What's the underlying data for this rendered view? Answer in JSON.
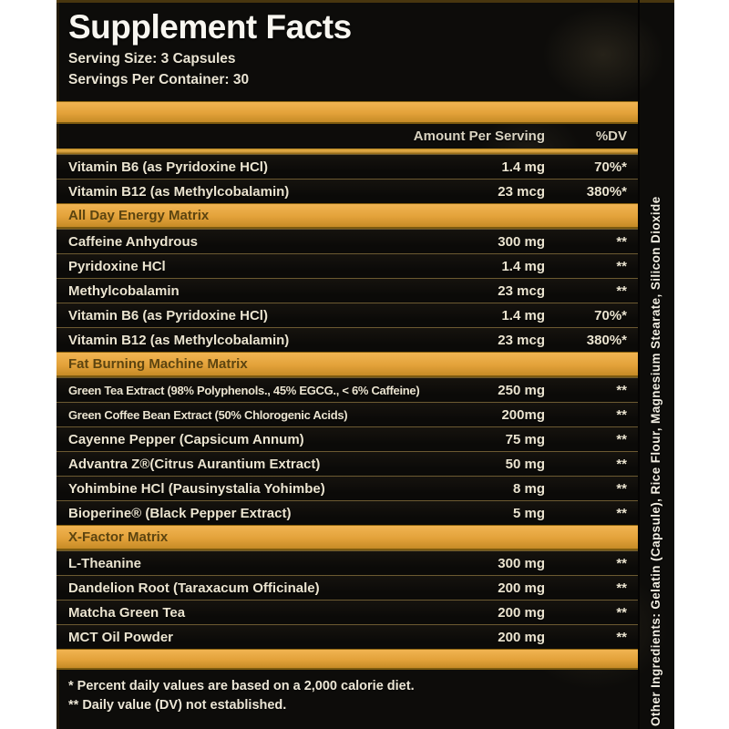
{
  "label": {
    "title": "Supplement Facts",
    "serving_size": "Serving Size: 3 Capsules",
    "servings_per_container": "Servings Per Container: 30",
    "columns": {
      "amount": "Amount Per Serving",
      "dv": "%DV"
    },
    "rows": [
      {
        "name": "Vitamin B6 (as Pyridoxine HCl)",
        "amount": "1.4 mg",
        "dv": "70%*"
      },
      {
        "name": "Vitamin B12 (as Methylcobalamin)",
        "amount": "23 mcg",
        "dv": "380%*"
      },
      {
        "section": "All Day Energy Matrix"
      },
      {
        "name": "Caffeine Anhydrous",
        "amount": "300 mg",
        "dv": "**"
      },
      {
        "name": "Pyridoxine HCl",
        "amount": "1.4 mg",
        "dv": "**"
      },
      {
        "name": "Methylcobalamin",
        "amount": "23 mcg",
        "dv": "**"
      },
      {
        "name": "Vitamin B6 (as Pyridoxine HCl)",
        "amount": "1.4 mg",
        "dv": "70%*"
      },
      {
        "name": "Vitamin B12 (as Methylcobalamin)",
        "amount": "23 mcg",
        "dv": "380%*"
      },
      {
        "section": "Fat Burning Machine Matrix"
      },
      {
        "name": "Green Tea Extract (98% Polyphenols., 45% EGCG., < 6% Caffeine)",
        "amount": "250 mg",
        "dv": "**"
      },
      {
        "name": "Green Coffee Bean Extract (50% Chlorogenic Acids)",
        "amount": "200mg",
        "dv": "**"
      },
      {
        "name": "Cayenne Pepper (Capsicum Annum)",
        "amount": "75 mg",
        "dv": "**"
      },
      {
        "name": "Advantra Z®(Citrus Aurantium Extract)",
        "amount": "50 mg",
        "dv": "**"
      },
      {
        "name": "Yohimbine HCl (Pausinystalia Yohimbe)",
        "amount": "8 mg",
        "dv": "**"
      },
      {
        "name": "Bioperine® (Black Pepper Extract)",
        "amount": "5 mg",
        "dv": "**"
      },
      {
        "section": "X-Factor Matrix"
      },
      {
        "name": "L-Theanine",
        "amount": "300 mg",
        "dv": "**"
      },
      {
        "name": "Dandelion Root (Taraxacum Officinale)",
        "amount": "200 mg",
        "dv": "**"
      },
      {
        "name": "Matcha Green Tea",
        "amount": "200 mg",
        "dv": "**"
      },
      {
        "name": "MCT Oil Powder",
        "amount": "200 mg",
        "dv": "**"
      }
    ],
    "footnotes": [
      "* Percent daily values are based on a 2,000 calorie diet.",
      "** Daily value (DV) not established."
    ],
    "other_ingredients": "Other Ingredients: Gelatin (Capsule), Rice Flour, Magnesium Stearate, Silicon Dioxide",
    "colors": {
      "gold": "#E3A33C",
      "gold_dark": "#C68B26",
      "section_text": "#5C4410",
      "row_text": "#EBE4D0",
      "label_bg": "#0D0C0A",
      "page_bg": "#FFFFFF"
    }
  }
}
